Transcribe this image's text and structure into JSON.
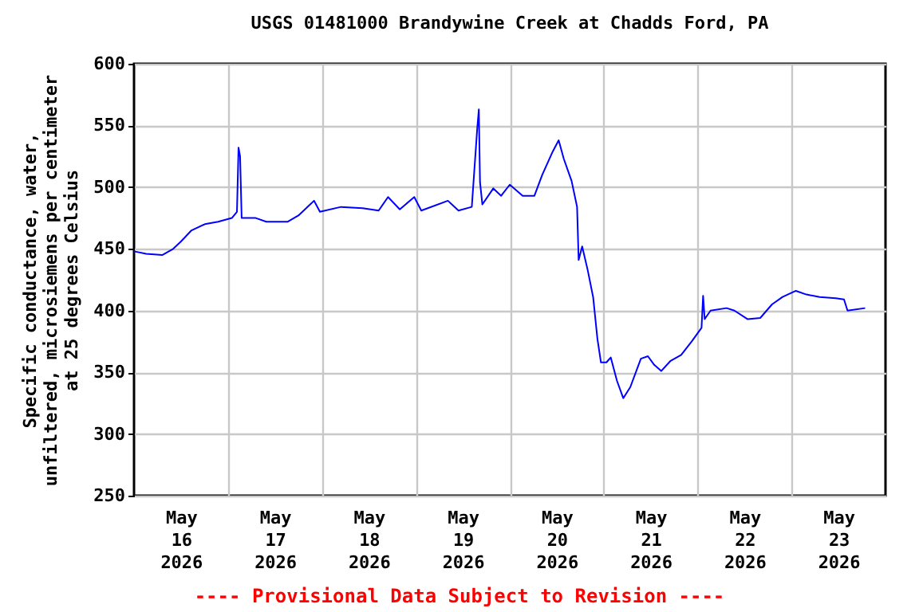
{
  "chart_data": {
    "type": "line",
    "title": "USGS 01481000 Brandywine Creek at Chadds Ford, PA",
    "ylabel": "Specific conductance, water,\nunfiltered, microsiemens per centimeter\nat 25 degrees Celsius",
    "annotations": [
      "---- Provisional Data Subject to Revision ----"
    ],
    "x": [
      "2026-05-16T00:00",
      "2026-05-16T03:06",
      "2026-05-16T07:12",
      "2026-05-16T10:00",
      "2026-05-16T12:00",
      "2026-05-16T14:42",
      "2026-05-16T18:06",
      "2026-05-16T21:30",
      "2026-05-17T01:00",
      "2026-05-17T02:18",
      "2026-05-17T02:42",
      "2026-05-17T03:06",
      "2026-05-17T03:30",
      "2026-05-17T07:06",
      "2026-05-17T09:48",
      "2026-05-17T15:18",
      "2026-05-17T18:00",
      "2026-05-17T22:00",
      "2026-05-17T23:30",
      "2026-05-18T04:54",
      "2026-05-18T10:24",
      "2026-05-18T14:30",
      "2026-05-18T16:54",
      "2026-05-18T19:54",
      "2026-05-18T23:36",
      "2026-05-19T01:24",
      "2026-05-19T08:12",
      "2026-05-19T10:54",
      "2026-05-19T14:18",
      "2026-05-19T15:42",
      "2026-05-19T16:06",
      "2026-05-19T16:24",
      "2026-05-19T17:00",
      "2026-05-19T19:48",
      "2026-05-19T21:48",
      "2026-05-20T00:00",
      "2026-05-20T03:18",
      "2026-05-20T06:18",
      "2026-05-20T08:18",
      "2026-05-20T11:00",
      "2026-05-20T12:30",
      "2026-05-20T13:48",
      "2026-05-20T15:48",
      "2026-05-20T17:12",
      "2026-05-20T17:36",
      "2026-05-20T18:30",
      "2026-05-20T19:54",
      "2026-05-20T21:18",
      "2026-05-20T22:24",
      "2026-05-20T23:18",
      "2026-05-21T00:42",
      "2026-05-21T01:48",
      "2026-05-21T03:24",
      "2026-05-21T05:00",
      "2026-05-21T06:48",
      "2026-05-21T09:30",
      "2026-05-21T11:18",
      "2026-05-21T12:54",
      "2026-05-21T14:42",
      "2026-05-21T17:00",
      "2026-05-21T19:48",
      "2026-05-21T22:30",
      "2026-05-22T01:00",
      "2026-05-22T01:24",
      "2026-05-22T01:48",
      "2026-05-22T03:18",
      "2026-05-22T07:24",
      "2026-05-22T09:24",
      "2026-05-22T12:48",
      "2026-05-22T16:00",
      "2026-05-22T19:00",
      "2026-05-22T21:42",
      "2026-05-23T01:06",
      "2026-05-23T03:48",
      "2026-05-23T07:12",
      "2026-05-23T11:18",
      "2026-05-23T13:24",
      "2026-05-23T14:18",
      "2026-05-23T18:48"
    ],
    "series": [
      {
        "color": "#0000ff",
        "values": [
          448,
          446,
          445,
          450,
          456,
          465,
          470,
          472,
          475,
          480,
          532,
          525,
          475,
          475,
          472,
          472,
          477,
          489,
          480,
          484,
          483,
          481,
          492,
          482,
          492,
          481,
          489,
          481,
          484,
          548,
          563,
          504,
          486,
          499,
          493,
          502,
          493,
          493,
          510,
          529,
          538,
          523,
          505,
          484,
          441,
          452,
          433,
          411,
          377,
          358,
          358,
          362,
          343,
          329,
          338,
          361,
          363,
          356,
          351,
          359,
          364,
          375,
          386,
          412,
          393,
          400,
          402,
          400,
          393,
          394,
          405,
          411,
          416,
          413,
          411,
          410,
          409,
          400,
          402
        ]
      }
    ],
    "xlim": [
      "2026-05-16T00:00",
      "2026-05-24T00:00"
    ],
    "xticks": [
      {
        "value": "2026-05-16T12:00",
        "label": "May 16 2026"
      },
      {
        "value": "2026-05-17T00:00",
        "label": null
      },
      {
        "value": "2026-05-17T12:00",
        "label": "May 17 2026"
      },
      {
        "value": "2026-05-18T00:00",
        "label": null
      },
      {
        "value": "2026-05-18T12:00",
        "label": "May 18 2026"
      },
      {
        "value": "2026-05-19T00:00",
        "label": null
      },
      {
        "value": "2026-05-19T12:00",
        "label": "May 19 2026"
      },
      {
        "value": "2026-05-20T00:00",
        "label": null
      },
      {
        "value": "2026-05-20T12:00",
        "label": "May 20 2026"
      },
      {
        "value": "2026-05-21T00:00",
        "label": null
      },
      {
        "value": "2026-05-21T12:00",
        "label": "May 21 2026"
      },
      {
        "value": "2026-05-22T00:00",
        "label": null
      },
      {
        "value": "2026-05-22T12:00",
        "label": "May 22 2026"
      },
      {
        "value": "2026-05-23T00:00",
        "label": null
      },
      {
        "value": "2026-05-23T12:00",
        "label": "May 23 2026"
      }
    ],
    "ylim": [
      250,
      600
    ],
    "yticks": [
      250,
      300,
      350,
      400,
      450,
      500,
      550,
      600
    ],
    "grid": true,
    "legend": false,
    "marker": "none",
    "line_style": "solid"
  }
}
